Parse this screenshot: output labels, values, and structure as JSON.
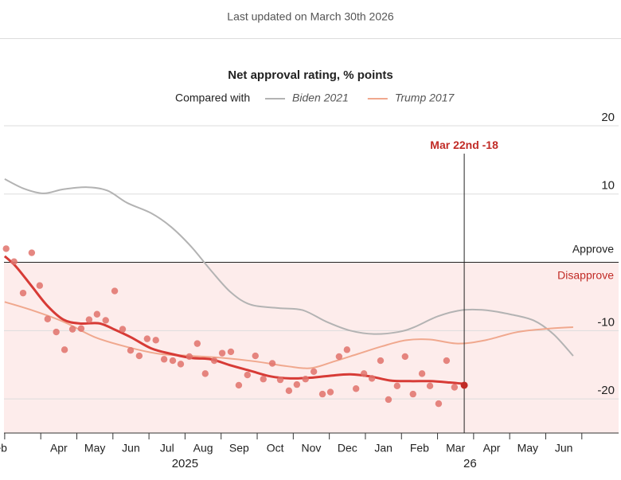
{
  "header": {
    "updated": "Last updated on March 30th 2026"
  },
  "chart_data": {
    "type": "line",
    "title": "Net approval rating, % points",
    "legend_intro": "Compared with",
    "ylim": [
      -25,
      20
    ],
    "yticks": [
      20,
      10,
      -10,
      -20
    ],
    "approve_label": "Approve",
    "disapprove_label": "Disapprove",
    "xlim": [
      -0.13,
      17.02
    ],
    "xticks": [
      {
        "value": -0.2,
        "label": "Feb"
      },
      {
        "value": 1.5,
        "label": "Apr"
      },
      {
        "value": 2.5,
        "label": "May"
      },
      {
        "value": 3.5,
        "label": "Jun"
      },
      {
        "value": 4.5,
        "label": "Jul"
      },
      {
        "value": 5.5,
        "label": "Aug"
      },
      {
        "value": 6.5,
        "label": "Sep"
      },
      {
        "value": 7.5,
        "label": "Oct"
      },
      {
        "value": 8.5,
        "label": "Nov"
      },
      {
        "value": 9.5,
        "label": "Dec"
      },
      {
        "value": 10.5,
        "label": "Jan"
      },
      {
        "value": 11.5,
        "label": "Feb"
      },
      {
        "value": 12.5,
        "label": "Mar"
      },
      {
        "value": 13.5,
        "label": "Apr"
      },
      {
        "value": 14.5,
        "label": "May"
      },
      {
        "value": 15.5,
        "label": "Jun"
      }
    ],
    "x_boundary_ticks": [
      0,
      1,
      2,
      3,
      4,
      5,
      6,
      7,
      8,
      9,
      10,
      11,
      12,
      13,
      14,
      15,
      16
    ],
    "x_year_labels": [
      {
        "value": 5,
        "label": "2025"
      },
      {
        "value": 12.9,
        "label": "26"
      }
    ],
    "series": [
      {
        "name": "Biden 2021",
        "color": "#b3b3b3",
        "legend": true,
        "x": [
          0,
          0.53,
          1.08,
          1.63,
          2.3,
          2.85,
          3.4,
          4.06,
          4.61,
          5.17,
          5.72,
          6.27,
          6.82,
          7.59,
          8.26,
          8.92,
          9.58,
          10.24,
          10.91,
          11.35,
          12.01,
          12.67,
          13.33,
          14,
          14.66,
          15.21,
          15.76
        ],
        "values": [
          12.2,
          10.8,
          10.1,
          10.7,
          11,
          10.5,
          8.7,
          7.2,
          5.2,
          2.3,
          -1.2,
          -4.4,
          -6.2,
          -6.7,
          -7,
          -8.7,
          -10,
          -10.5,
          -10.2,
          -9.5,
          -7.9,
          -7,
          -7,
          -7.6,
          -8.5,
          -10.5,
          -13.7
        ]
      },
      {
        "name": "Trump 2017",
        "color": "#f0a88e",
        "legend": true,
        "x": [
          0,
          0.75,
          1.63,
          2.52,
          3.4,
          4.28,
          5.17,
          6.05,
          6.93,
          7.81,
          8.48,
          9.14,
          9.8,
          10.46,
          11.13,
          11.79,
          12.56,
          13.33,
          14.22,
          15.1,
          15.76
        ],
        "values": [
          -5.8,
          -7,
          -8.7,
          -11,
          -12.4,
          -13.4,
          -13.7,
          -14,
          -14.5,
          -15.2,
          -15.5,
          -14.5,
          -13.4,
          -12.3,
          -11.4,
          -11.3,
          -11.9,
          -11.4,
          -10.2,
          -9.7,
          -9.5
        ]
      },
      {
        "color": "#d73b36",
        "x": [
          0,
          0.31,
          0.75,
          1.19,
          1.63,
          2.08,
          2.63,
          3.07,
          3.51,
          4.06,
          4.61,
          5.17,
          5.72,
          6.27,
          6.82,
          7.37,
          7.92,
          8.48,
          9.03,
          9.58,
          10.13,
          10.68,
          11.24,
          11.79,
          12.34,
          12.74
        ],
        "values": [
          0.9,
          -0.6,
          -3.5,
          -6.4,
          -8.4,
          -8.95,
          -8.95,
          -9.9,
          -11,
          -12.6,
          -13.4,
          -14,
          -14.2,
          -15.1,
          -15.9,
          -16.7,
          -17,
          -16.9,
          -16.6,
          -16.4,
          -16.7,
          -17.3,
          -17.4,
          -17.4,
          -17.6,
          -17.8
        ]
      }
    ],
    "polls": {
      "color": "#e0726b",
      "x": [
        0.04,
        0.26,
        0.51,
        0.75,
        0.97,
        1.19,
        1.43,
        1.66,
        1.88,
        2.12,
        2.34,
        2.56,
        2.8,
        3.05,
        3.27,
        3.49,
        3.73,
        3.95,
        4.19,
        4.42,
        4.66,
        4.88,
        5.12,
        5.34,
        5.56,
        5.81,
        6.03,
        6.27,
        6.49,
        6.73,
        6.95,
        7.17,
        7.42,
        7.64,
        7.88,
        8.1,
        8.34,
        8.57,
        8.81,
        9.03,
        9.27,
        9.49,
        9.74,
        9.96,
        10.18,
        10.42,
        10.64,
        10.88,
        11.1,
        11.32,
        11.57,
        11.79,
        12.03,
        12.25,
        12.47
      ],
      "values": [
        2,
        0.1,
        -4.5,
        1.4,
        -3.4,
        -8.3,
        -10.2,
        -12.8,
        -9.8,
        -9.7,
        -8.4,
        -7.6,
        -8.5,
        -4.2,
        -9.8,
        -12.9,
        -13.7,
        -11.2,
        -11.4,
        -14.2,
        -14.4,
        -14.9,
        -13.8,
        -11.9,
        -16.3,
        -14.4,
        -13.3,
        -13.1,
        -18,
        -16.5,
        -13.7,
        -17.1,
        -14.8,
        -17.2,
        -18.8,
        -17.9,
        -17.1,
        -16,
        -19.3,
        -19,
        -13.8,
        -12.8,
        -18.5,
        -16.3,
        -17,
        -14.4,
        -20.1,
        -18.1,
        -13.8,
        -19.3,
        -16.3,
        -18.1,
        -20.7,
        -14.4,
        -18.3
      ]
    },
    "annotation": {
      "x": 12.74,
      "date": "Mar 22nd",
      "value": -18,
      "color": "#c12b26"
    }
  }
}
